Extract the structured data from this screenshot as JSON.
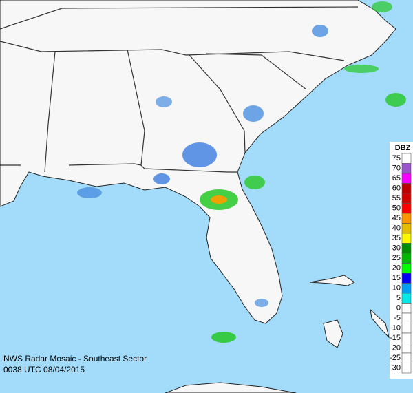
{
  "caption": {
    "line1": "NWS Radar Mosaic - Southeast Sector",
    "line2": "0038 UTC 08/04/2015"
  },
  "legend": {
    "title": "DBZ",
    "entries": [
      {
        "label": 75,
        "color": "#ffffff"
      },
      {
        "label": 70,
        "color": "#9954c9"
      },
      {
        "label": 65,
        "color": "#f800fd"
      },
      {
        "label": 60,
        "color": "#bc0000"
      },
      {
        "label": 55,
        "color": "#d40000"
      },
      {
        "label": 50,
        "color": "#fd0000"
      },
      {
        "label": 45,
        "color": "#fd9500"
      },
      {
        "label": 40,
        "color": "#e5bc00"
      },
      {
        "label": 35,
        "color": "#fdf802"
      },
      {
        "label": 30,
        "color": "#008e00"
      },
      {
        "label": 25,
        "color": "#01b801"
      },
      {
        "label": 20,
        "color": "#02fd02"
      },
      {
        "label": 15,
        "color": "#0300f4"
      },
      {
        "label": 10,
        "color": "#019ff4"
      },
      {
        "label": 5,
        "color": "#04e9e7"
      },
      {
        "label": 0,
        "color": "#ffffff"
      },
      {
        "label": -5,
        "color": "#ffffff"
      },
      {
        "label": -10,
        "color": "#ffffff"
      },
      {
        "label": -15,
        "color": "#ffffff"
      },
      {
        "label": -20,
        "color": "#ffffff"
      },
      {
        "label": -25,
        "color": "#ffffff"
      },
      {
        "label": -30,
        "color": "#ffffff"
      }
    ]
  }
}
